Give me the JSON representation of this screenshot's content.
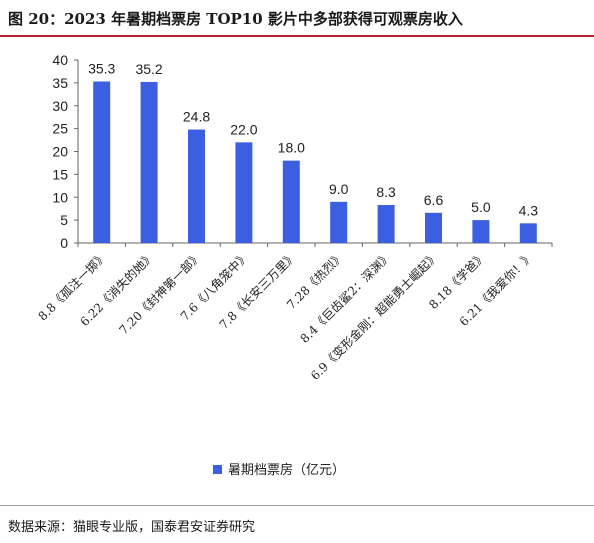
{
  "title": "图 20：2023 年暑期档票房 TOP10 影片中多部获得可观票房收入",
  "source": "数据来源：猫眼专业版，国泰君安证券研究",
  "colors": {
    "bar": "#3b5fe0",
    "title_rule": "#b21f2d",
    "axis": "#666666"
  },
  "chart_data": {
    "type": "bar",
    "title": "",
    "xlabel": "",
    "ylabel": "",
    "ylim": [
      0,
      40
    ],
    "yticks": [
      0,
      5,
      10,
      15,
      20,
      25,
      30,
      35,
      40
    ],
    "grid": false,
    "legend_position": "bottom",
    "categories": [
      "8.8《孤注一掷》",
      "6.22《消失的她》",
      "7.20《封神第一部》",
      "7.6《八角笼中》",
      "7.8《长安三万里》",
      "7.28《热烈》",
      "8.4《巨齿鲨2：深渊》",
      "6.9《变形金刚：超能勇士崛起》",
      "8.18《学爸》",
      "6.21《我爱你！》"
    ],
    "series": [
      {
        "name": "暑期档票房（亿元）",
        "values": [
          35.3,
          35.2,
          24.8,
          22.0,
          18.0,
          9.0,
          8.3,
          6.6,
          5.0,
          4.3
        ],
        "labels": [
          "35.3",
          "35.2",
          "24.8",
          "22.0",
          "18.0",
          "9.0",
          "8.3",
          "6.6",
          "5.0",
          "4.3"
        ]
      }
    ]
  }
}
